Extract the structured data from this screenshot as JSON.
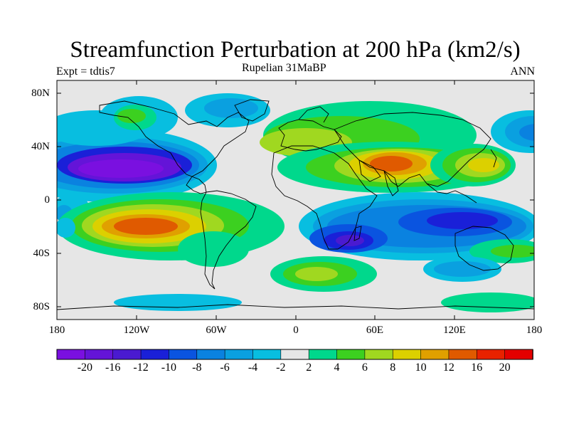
{
  "title": "Streamfunction Perturbation at 200 hPa (km2/s)",
  "subtitle_left": "Expt = tdtis7",
  "subtitle_center": "Rupelian  31MaBP",
  "subtitle_right": "ANN",
  "lat_ticks": [
    "80N",
    "40N",
    "0",
    "40S",
    "80S"
  ],
  "lon_ticks": [
    "180",
    "120W",
    "60W",
    "0",
    "60E",
    "120E",
    "180"
  ],
  "colorbar": {
    "labels": [
      "-20",
      "-16",
      "-12",
      "-10",
      "-8",
      "-6",
      "-4",
      "-2",
      "2",
      "4",
      "6",
      "8",
      "10",
      "12",
      "16",
      "20"
    ],
    "colors": [
      "#7a10e0",
      "#6414d8",
      "#4a1ad0",
      "#1a20d8",
      "#0a54e0",
      "#0a82e0",
      "#0aa0e0",
      "#08bee0",
      "#e6e6e6",
      "#00d88c",
      "#3cd020",
      "#a0d820",
      "#dcd000",
      "#e0a000",
      "#e05a00",
      "#e82200",
      "#e40000"
    ]
  },
  "map_colors": {
    "neutral": "#e6e6e6",
    "coast": "#000000"
  }
}
